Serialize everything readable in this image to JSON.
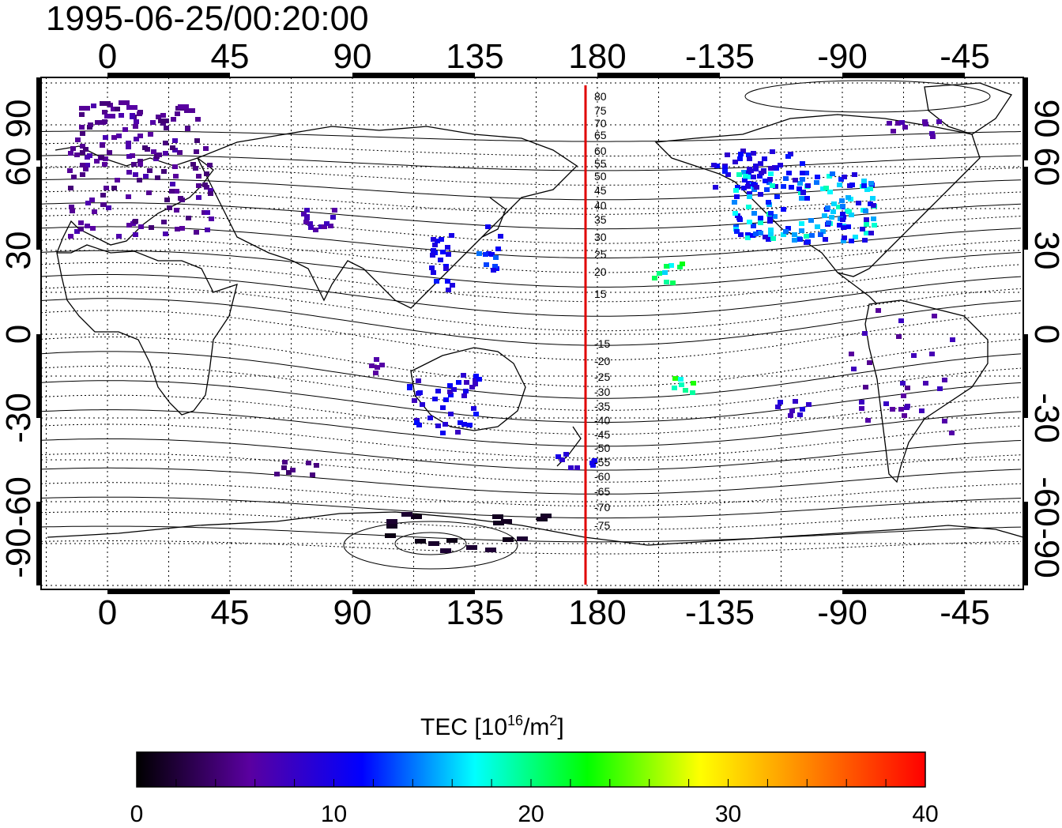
{
  "title": "1995-06-25/00:20:00",
  "map": {
    "top_lon_labels": [
      "0",
      "45",
      "90",
      "135",
      "180",
      "-135",
      "-90",
      "-45"
    ],
    "bottom_lon_labels": [
      "0",
      "45",
      "90",
      "135",
      "180",
      "-135",
      "-90",
      "-45"
    ],
    "left_lat_labels": [
      "90",
      "60",
      "30",
      "0",
      "-30",
      "-60",
      "-90"
    ],
    "right_lat_labels": [
      "90",
      "60",
      "30",
      "0",
      "-30",
      "-60",
      "-90"
    ],
    "mlat_labels": [
      "80",
      "75",
      "70",
      "65",
      "60",
      "55",
      "50",
      "45",
      "40",
      "35",
      "30",
      "25",
      "20",
      "15",
      "-15",
      "-20",
      "-25",
      "-30",
      "-35",
      "-40",
      "-45",
      "-50",
      "-55",
      "-60",
      "-65",
      "-70",
      "-75"
    ],
    "terminator_color": "#e00000",
    "grid": "dotted"
  },
  "colorbar": {
    "label_prefix": "TEC  [10",
    "label_sup1": "16",
    "label_mid": "/m",
    "label_sup2": "2",
    "label_suffix": "]",
    "ticks": [
      "0",
      "10",
      "20",
      "30",
      "40"
    ],
    "range": [
      0,
      40
    ],
    "colors": [
      "#000000",
      "#5a00a0",
      "#0000ff",
      "#00ffff",
      "#00ff00",
      "#ffff00",
      "#ff8000",
      "#ff0000"
    ]
  }
}
